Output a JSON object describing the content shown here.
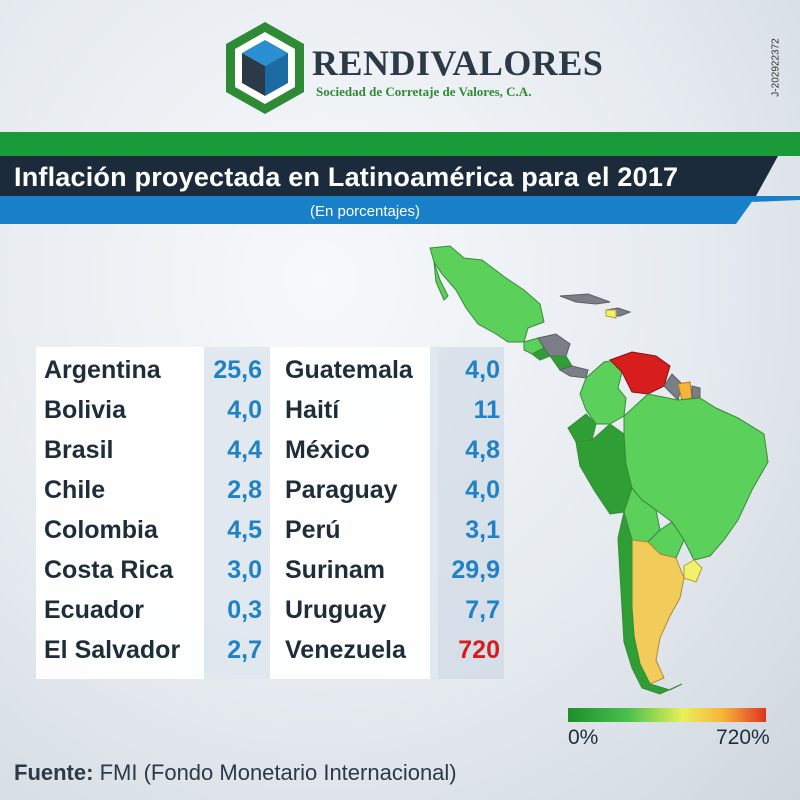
{
  "brand": {
    "name": "RENDIVALORES",
    "subtitle": "Sociedad de Corretaje de Valores, C.A.",
    "registry_id": "J-202922372",
    "colors": {
      "green": "#2f8a35",
      "blue": "#1f82c4",
      "dark": "#2c3a47"
    }
  },
  "banner": {
    "title": "Inflación proyectada en Latinoamérica para el 2017",
    "subtitle": "(En porcentajes)",
    "colors": {
      "green_stripe": "#1a9a38",
      "dark_bar": "#1c2b3b",
      "blue_bar": "#1780c8"
    }
  },
  "table": {
    "left_column": [
      {
        "country": "Argentina",
        "value": "25,6"
      },
      {
        "country": "Bolivia",
        "value": "4,0"
      },
      {
        "country": "Brasil",
        "value": "4,4"
      },
      {
        "country": "Chile",
        "value": "2,8"
      },
      {
        "country": "Colombia",
        "value": "4,5"
      },
      {
        "country": "Costa Rica",
        "value": "3,0"
      },
      {
        "country": "Ecuador",
        "value": "0,3"
      },
      {
        "country": "El Salvador",
        "value": "2,7"
      }
    ],
    "right_column": [
      {
        "country": "Guatemala",
        "value": "4,0"
      },
      {
        "country": "Haití",
        "value": "11"
      },
      {
        "country": "México",
        "value": "4,8"
      },
      {
        "country": "Paraguay",
        "value": "4,0"
      },
      {
        "country": "Perú",
        "value": "3,1"
      },
      {
        "country": "Surinam",
        "value": "29,9"
      },
      {
        "country": "Uruguay",
        "value": "7,7"
      },
      {
        "country": "Venezuela",
        "value": "720",
        "highlight": true
      }
    ],
    "colors": {
      "value": "#1f82c4",
      "highlight": "#d61d1d"
    }
  },
  "legend": {
    "min_label": "0%",
    "max_label": "720%",
    "gradient_colors": [
      "#1e8f2a",
      "#49c04c",
      "#e8f05a",
      "#f6b53a",
      "#e23222"
    ]
  },
  "source": {
    "label": "Fuente:",
    "text": "FMI (Fondo Monetario Internacional)"
  }
}
